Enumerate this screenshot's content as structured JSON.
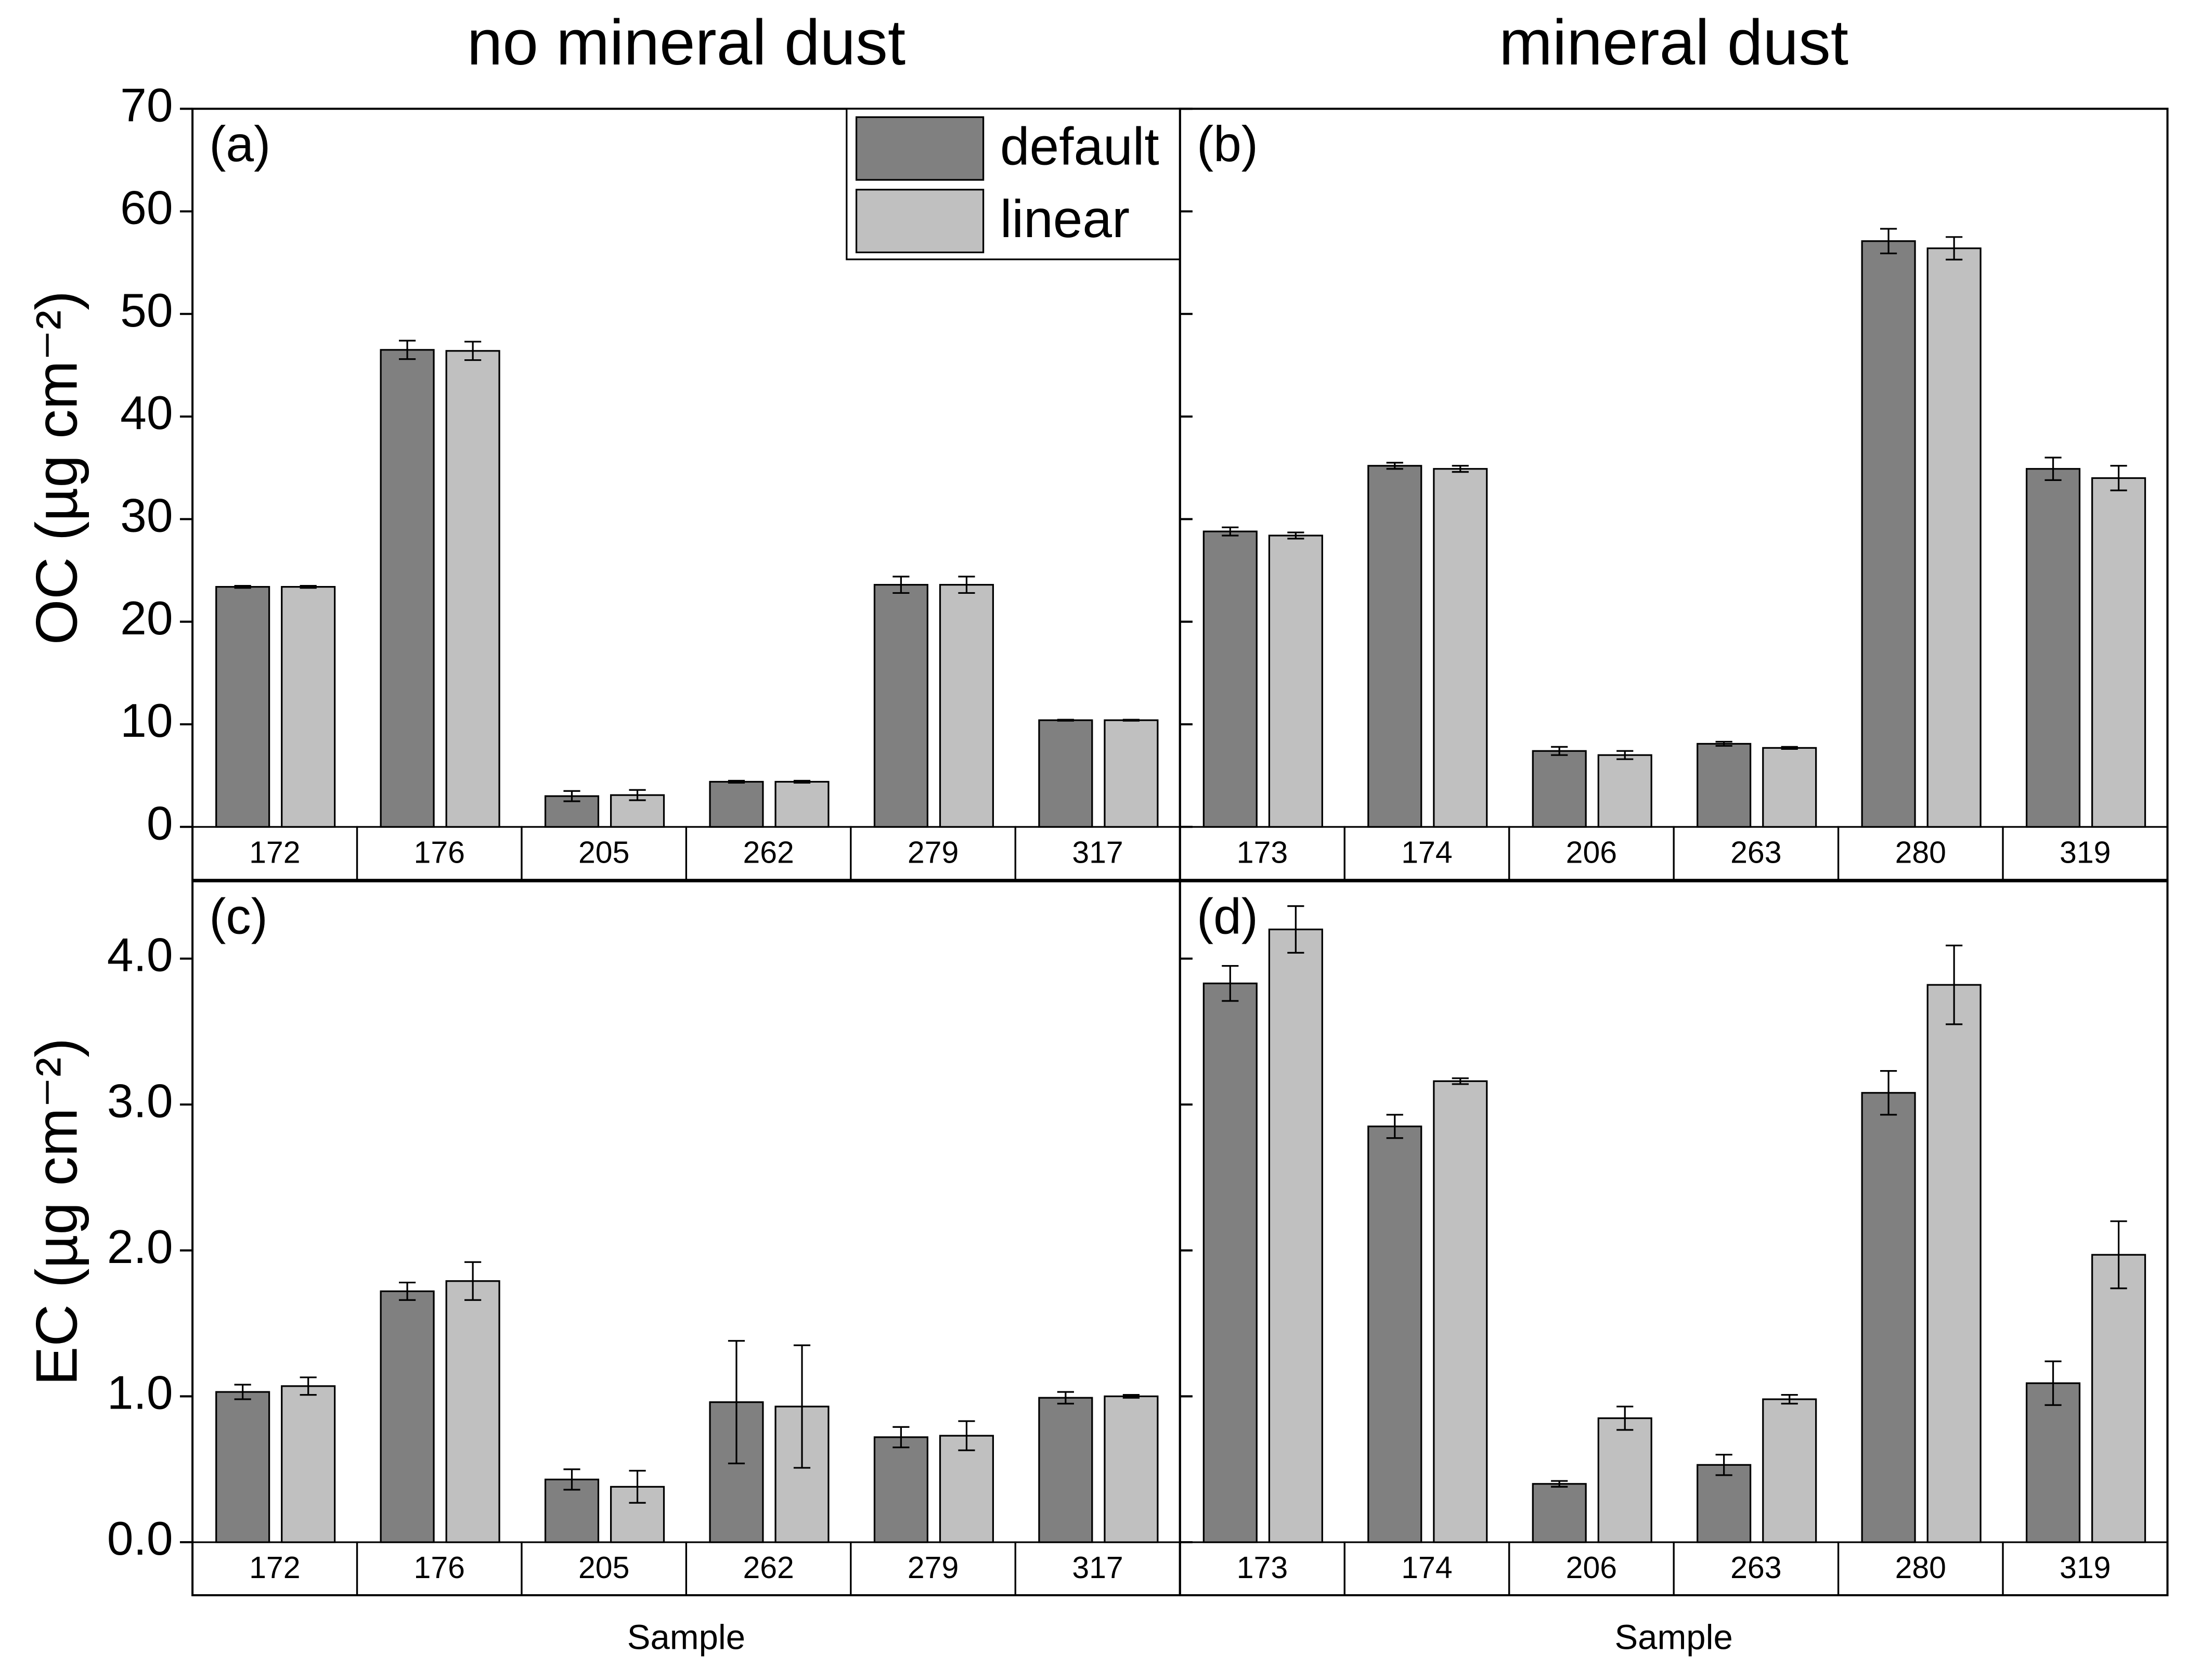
{
  "chart_data": [
    {
      "type": "bar",
      "title": "no mineral dust",
      "panel_label": "(a)",
      "y_label": "OC (µg cm⁻²)",
      "categories": [
        "172",
        "176",
        "205",
        "262",
        "279",
        "317"
      ],
      "series": [
        {
          "name": "default",
          "color": "#808080",
          "values": [
            23.4,
            46.5,
            3.0,
            4.4,
            23.6,
            10.4
          ],
          "errors": [
            0.1,
            0.9,
            0.5,
            0.1,
            0.8,
            0.05
          ]
        },
        {
          "name": "linear",
          "color": "#c0c0c0",
          "values": [
            23.4,
            46.4,
            3.1,
            4.4,
            23.6,
            10.4
          ],
          "errors": [
            0.1,
            0.9,
            0.5,
            0.1,
            0.8,
            0.05
          ]
        }
      ],
      "ylim": [
        0,
        70
      ],
      "yticks": [
        0,
        10,
        20,
        30,
        40,
        50,
        60,
        70
      ],
      "legend": "upper right"
    },
    {
      "type": "bar",
      "title": "mineral dust",
      "panel_label": "(b)",
      "categories": [
        "173",
        "174",
        "206",
        "263",
        "280",
        "319"
      ],
      "series": [
        {
          "color": "#808080",
          "values": [
            28.8,
            35.2,
            7.4,
            8.1,
            57.1,
            34.9
          ],
          "errors": [
            0.4,
            0.3,
            0.4,
            0.2,
            1.2,
            1.1
          ]
        },
        {
          "color": "#c0c0c0",
          "values": [
            28.4,
            34.9,
            7.0,
            7.7,
            56.4,
            34.0
          ],
          "errors": [
            0.3,
            0.3,
            0.4,
            0.1,
            1.1,
            1.2
          ]
        }
      ],
      "ylim": [
        0,
        70
      ]
    },
    {
      "type": "bar",
      "panel_label": "(c)",
      "y_label": "EC (µg cm⁻²)",
      "x_label": "Sample",
      "categories": [
        "172",
        "176",
        "205",
        "262",
        "279",
        "317"
      ],
      "series": [
        {
          "color": "#808080",
          "values": [
            1.03,
            1.72,
            0.43,
            0.96,
            0.72,
            0.99
          ],
          "errors": [
            0.05,
            0.06,
            0.07,
            0.42,
            0.07,
            0.04
          ]
        },
        {
          "color": "#c0c0c0",
          "values": [
            1.07,
            1.79,
            0.38,
            0.93,
            0.73,
            1.0
          ],
          "errors": [
            0.06,
            0.13,
            0.11,
            0.42,
            0.1,
            0.01
          ]
        }
      ],
      "ylim": [
        0,
        4.53
      ],
      "yticks": [
        {
          "value": 0,
          "label": "0.0"
        },
        {
          "value": 1,
          "label": "1.0"
        },
        {
          "value": 2,
          "label": "2.0"
        },
        {
          "value": 3,
          "label": "3.0"
        },
        {
          "value": 4,
          "label": "4.0"
        }
      ]
    },
    {
      "type": "bar",
      "panel_label": "(d)",
      "x_label": "Sample",
      "categories": [
        "173",
        "174",
        "206",
        "263",
        "280",
        "319"
      ],
      "series": [
        {
          "color": "#808080",
          "values": [
            3.83,
            2.85,
            0.4,
            0.53,
            3.08,
            1.09
          ],
          "errors": [
            0.12,
            0.08,
            0.02,
            0.07,
            0.15,
            0.15
          ]
        },
        {
          "color": "#c0c0c0",
          "values": [
            4.2,
            3.16,
            0.85,
            0.98,
            3.82,
            1.97
          ],
          "errors": [
            0.16,
            0.02,
            0.08,
            0.03,
            0.27,
            0.23
          ]
        }
      ],
      "ylim": [
        0,
        4.53
      ]
    }
  ]
}
